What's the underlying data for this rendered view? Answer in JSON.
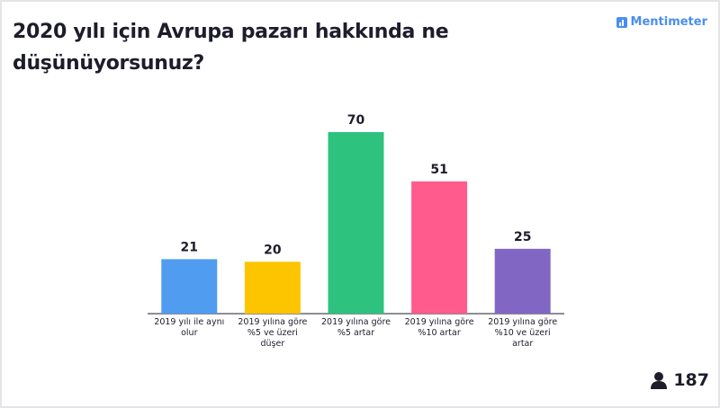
{
  "brand": "Mentimeter",
  "participants": 187,
  "chart_data": {
    "type": "bar",
    "title": "2020 yılı için Avrupa pazarı hakkında ne düşünüyorsunuz?",
    "categories": [
      "2019 yılı ile aynı olur",
      "2019 yılına göre %5 ve üzeri düşer",
      "2019 yılına göre %5 artar",
      "2019 yılına göre %10 artar",
      "2019 yılına göre %10 ve üzeri artar"
    ],
    "values": [
      21,
      20,
      70,
      51,
      25
    ],
    "colors": [
      "#4f9cf0",
      "#fdc400",
      "#2ec27f",
      "#ff5b8c",
      "#8266c3"
    ]
  }
}
